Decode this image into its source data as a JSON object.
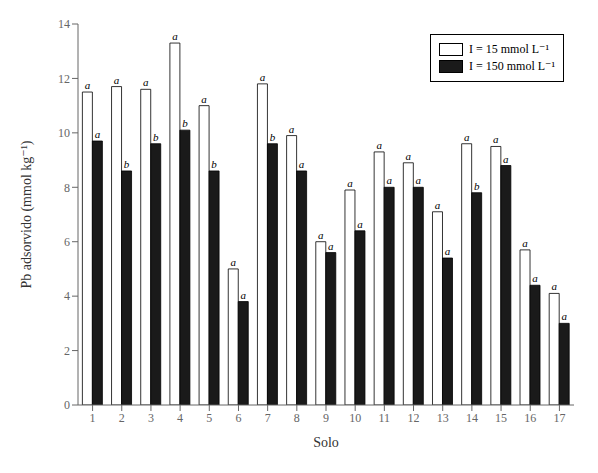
{
  "chart_data": {
    "type": "bar",
    "xlabel": "Solo",
    "ylabel": "Pb adsorvido (mmol kg⁻¹)",
    "categories": [
      1,
      2,
      3,
      4,
      5,
      6,
      7,
      8,
      9,
      10,
      11,
      12,
      13,
      14,
      15,
      16,
      17
    ],
    "series": [
      {
        "name": "I = 15 mmol L⁻¹",
        "color": "#ffffff",
        "values": [
          11.5,
          11.7,
          11.6,
          13.3,
          11.0,
          5.0,
          11.8,
          9.9,
          6.0,
          7.9,
          9.3,
          8.9,
          7.1,
          9.6,
          9.5,
          5.7,
          4.1
        ],
        "annotations": [
          "a",
          "a",
          "a",
          "a",
          "a",
          "a",
          "a",
          "a",
          "a",
          "a",
          "a",
          "a",
          "a",
          "a",
          "a",
          "a",
          "a"
        ]
      },
      {
        "name": "I = 150 mmol L⁻¹",
        "color": "#1a1a1a",
        "values": [
          9.7,
          8.6,
          9.6,
          10.1,
          8.6,
          3.8,
          9.6,
          8.6,
          5.6,
          6.4,
          8.0,
          8.0,
          5.4,
          7.8,
          8.8,
          4.4,
          3.0
        ],
        "annotations": [
          "a",
          "b",
          "b",
          "b",
          "b",
          "a",
          "b",
          "a",
          "a",
          "a",
          "a",
          "a",
          "a",
          "b",
          "a",
          "a",
          "a"
        ]
      }
    ],
    "ylim": [
      0,
      14
    ],
    "yticks": [
      0,
      2,
      4,
      6,
      8,
      10,
      12,
      14
    ],
    "grid": false,
    "legend": "upper right"
  }
}
